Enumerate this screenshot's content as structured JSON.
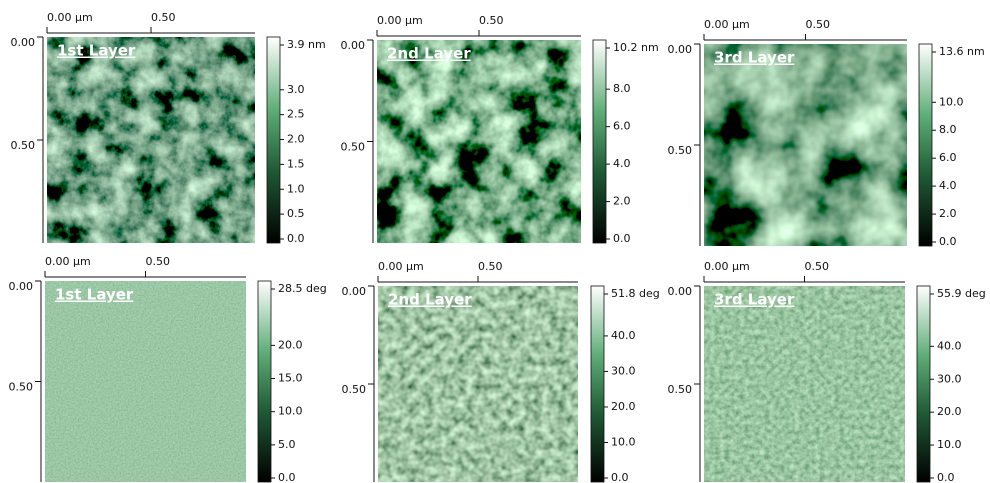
{
  "panels": [
    {
      "title": "1st Layer",
      "x_ticks": [
        "0.00 µm",
        "0.50"
      ],
      "y_ticks": [
        "0.00",
        "0.50"
      ],
      "colorbar": [
        "3.9 nm",
        "3.0",
        "2.5",
        "2.0",
        "1.5",
        "1.0",
        "0.5",
        "0.0"
      ]
    },
    {
      "title": "2nd Layer",
      "x_ticks": [
        "0.00 µm",
        "0.50"
      ],
      "y_ticks": [
        "0.00",
        "0.50"
      ],
      "colorbar": [
        "10.2 nm",
        "8.0",
        "6.0",
        "4.0",
        "2.0",
        "0.0"
      ]
    },
    {
      "title": "3rd Layer",
      "x_ticks": [
        "0.00 µm",
        "0.50"
      ],
      "y_ticks": [
        "0.00",
        "0.50"
      ],
      "colorbar": [
        "13.6 nm",
        "10.0",
        "8.0",
        "6.0",
        "4.0",
        "2.0",
        "0.0"
      ]
    },
    {
      "title": "1st Layer",
      "x_ticks": [
        "0.00 µm",
        "0.50"
      ],
      "y_ticks": [
        "0.00",
        "0.50"
      ],
      "colorbar": [
        "28.5 deg",
        "20.0",
        "15.0",
        "10.0",
        "5.0",
        "0.0"
      ]
    },
    {
      "title": "2nd Layer",
      "x_ticks": [
        "0.00 µm",
        "0.50"
      ],
      "y_ticks": [
        "0.00",
        "0.50"
      ],
      "colorbar": [
        "51.8 deg",
        "40.0",
        "30.0",
        "20.0",
        "10.0",
        "0.0"
      ]
    },
    {
      "title": "3rd Layer",
      "x_ticks": [
        "0.00 µm",
        "0.50"
      ],
      "y_ticks": [
        "0.00",
        "0.50"
      ],
      "colorbar": [
        "55.9 deg",
        "40.0",
        "30.0",
        "20.0",
        "10.0",
        "0.0"
      ]
    }
  ]
}
